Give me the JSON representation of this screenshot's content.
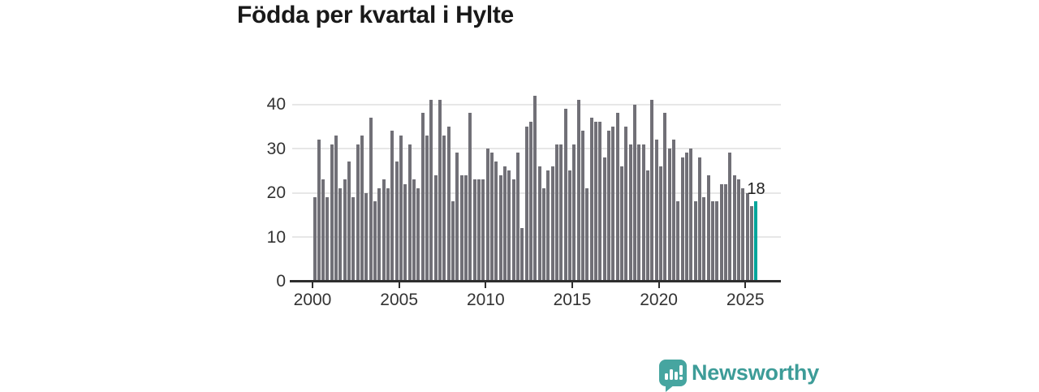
{
  "title": "Födda per kvartal i Hylte",
  "chart_data": {
    "type": "bar",
    "series_name": "Födda per kvartal",
    "start_period": "2000-Q1",
    "end_period": "2025-Q3",
    "values": [
      19,
      32,
      23,
      19,
      31,
      33,
      21,
      23,
      27,
      19,
      31,
      33,
      20,
      37,
      18,
      21,
      23,
      21,
      34,
      27,
      33,
      22,
      31,
      23,
      21,
      38,
      33,
      41,
      24,
      41,
      33,
      35,
      18,
      29,
      24,
      24,
      38,
      23,
      23,
      23,
      30,
      29,
      27,
      24,
      26,
      25,
      23,
      29,
      12,
      35,
      36,
      42,
      26,
      21,
      25,
      26,
      31,
      31,
      39,
      25,
      31,
      41,
      34,
      21,
      37,
      36,
      36,
      28,
      34,
      35,
      38,
      26,
      35,
      31,
      40,
      31,
      31,
      25,
      41,
      32,
      26,
      38,
      30,
      32,
      18,
      28,
      29,
      30,
      18,
      28,
      19,
      24,
      18,
      18,
      22,
      22,
      29,
      24,
      23,
      21,
      20,
      17,
      18
    ],
    "highlight_last_bar": true,
    "last_value_label": "18",
    "yticks": [
      0,
      10,
      20,
      30,
      40
    ],
    "xtick_years": [
      2000,
      2005,
      2010,
      2015,
      2020,
      2025
    ],
    "ylim": [
      0,
      42
    ],
    "grid": true,
    "bar_color": "#717077",
    "highlight_color": "#00a59b",
    "axis_color": "#2e2e2e",
    "gridline_color": "#e7e7e7",
    "tick_label_color": "#333333"
  },
  "footer": {
    "brand": "Newsworthy",
    "brand_color": "#3d9c98"
  }
}
